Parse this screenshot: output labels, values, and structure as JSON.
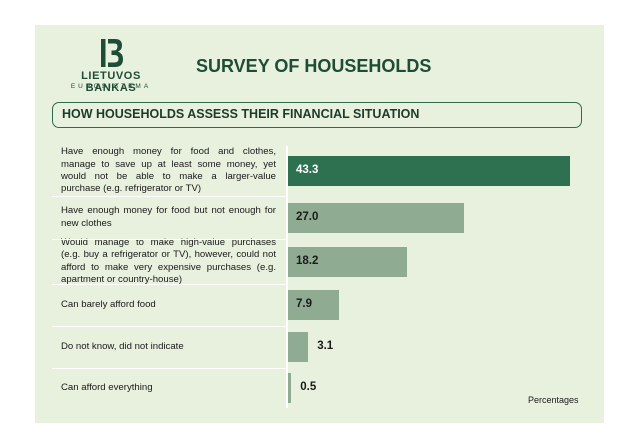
{
  "header": {
    "logo_name": "LIETUVOS BANKAS",
    "logo_sub": "EUROSISTEMA",
    "title": "SURVEY OF HOUSEHOLDS",
    "subtitle": "HOW HOUSEHOLDS ASSESS THEIR FINANCIAL SITUATION"
  },
  "chart_data": {
    "type": "bar",
    "orientation": "horizontal",
    "title": "HOW HOUSEHOLDS ASSESS THEIR FINANCIAL SITUATION",
    "unit_label": "Percentages",
    "categories": [
      "Have enough money for food and clothes, manage to save up at least some money, yet would not be able to make a larger-value purchase (e.g. refrigerator or TV)",
      "Have enough money for food but not enough for new clothes",
      "Would manage to make high-value purchases (e.g. buy a refrigerator or TV), however, could not afford to make very expensive purchases (e.g. apartment or country-house)",
      "Can barely afford food",
      "Do not know, did not indicate",
      "Can afford everything"
    ],
    "values": [
      43.3,
      27.0,
      18.2,
      7.9,
      3.1,
      0.5
    ],
    "value_labels": [
      "43.3",
      "27.0",
      "18.2",
      "7.9",
      "3.1",
      "0.5"
    ],
    "highlight_color": "#2d7150",
    "bar_color": "#8fab92",
    "xlim": [
      0,
      45
    ]
  }
}
